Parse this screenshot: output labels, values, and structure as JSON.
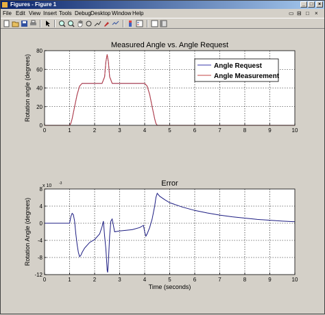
{
  "window": {
    "title": "Figures - Figure 1"
  },
  "window_controls": {
    "minimize": "_",
    "maximize": "□",
    "close": "×"
  },
  "menubar": {
    "items": [
      "File",
      "Edit",
      "View",
      "Insert",
      "Tools",
      "Debug",
      "Desktop",
      "Window",
      "Help"
    ]
  },
  "dock_controls": [
    "▭",
    "⊟",
    "□",
    "×"
  ],
  "toolbar": {
    "icons": [
      "new-file-icon",
      "open-file-icon",
      "save-icon",
      "print-icon",
      "edit-plot-arrow-icon",
      "zoom-in-icon",
      "zoom-out-icon",
      "pan-hand-icon",
      "rotate-3d-icon",
      "data-cursor-icon",
      "brush-icon",
      "link-plot-icon",
      "colorbar-icon",
      "legend-icon",
      "hide-plot-tools-icon",
      "show-plot-tools-icon"
    ]
  },
  "chart_data": [
    {
      "type": "line",
      "title": "Measured Angle vs. Angle Request",
      "xlabel": "",
      "ylabel": "Rotation angle (degrees)",
      "xlim": [
        0,
        10
      ],
      "ylim": [
        0,
        80
      ],
      "xticks": [
        "0",
        "1",
        "2",
        "3",
        "4",
        "5",
        "6",
        "7",
        "8",
        "9",
        "10"
      ],
      "yticks": [
        "0",
        "20",
        "40",
        "60",
        "80"
      ],
      "grid": true,
      "legend_placement": "top-right",
      "series": [
        {
          "name": "Angle Request",
          "color": "#3333aa",
          "x": [
            0,
            1.0,
            1.05,
            1.1,
            1.2,
            1.3,
            1.4,
            1.5,
            2.3,
            2.4,
            2.45,
            2.5,
            2.55,
            2.6,
            2.7,
            4.0,
            4.1,
            4.2,
            4.3,
            4.4,
            4.45,
            4.5,
            10
          ],
          "y": [
            0,
            0,
            2,
            7,
            20,
            33,
            42,
            45,
            45,
            52,
            68,
            76,
            68,
            52,
            45,
            45,
            42,
            33,
            20,
            7,
            2,
            0,
            0
          ]
        },
        {
          "name": "Angle Measurement",
          "color": "#c04040",
          "x": [
            0,
            1.0,
            1.05,
            1.1,
            1.2,
            1.3,
            1.4,
            1.5,
            2.3,
            2.4,
            2.45,
            2.5,
            2.55,
            2.6,
            2.7,
            4.0,
            4.1,
            4.2,
            4.3,
            4.4,
            4.45,
            4.5,
            10
          ],
          "y": [
            0,
            0,
            2,
            7,
            20,
            33,
            42,
            45,
            45,
            52,
            68,
            76,
            68,
            52,
            45,
            45,
            42,
            33,
            20,
            7,
            2,
            0,
            0
          ]
        }
      ]
    },
    {
      "type": "line",
      "title": "Error",
      "xlabel": "Time (seconds)",
      "ylabel": "Rotation Angle (degrees)",
      "multiplier": "x 10",
      "multiplier_exp": "-3",
      "xlim": [
        0,
        10
      ],
      "ylim": [
        -12,
        8
      ],
      "xticks": [
        "0",
        "1",
        "2",
        "3",
        "4",
        "5",
        "6",
        "7",
        "8",
        "9",
        "10"
      ],
      "yticks": [
        "8",
        "4",
        "0",
        "-4",
        "-8",
        "-12"
      ],
      "grid": true,
      "series": [
        {
          "name": "",
          "color": "#1a1a80",
          "x": [
            0,
            1.0,
            1.05,
            1.1,
            1.15,
            1.2,
            1.25,
            1.3,
            1.35,
            1.4,
            1.45,
            1.5,
            1.6,
            1.8,
            2.0,
            2.2,
            2.3,
            2.35,
            2.4,
            2.45,
            2.47,
            2.5,
            2.52,
            2.55,
            2.6,
            2.65,
            2.7,
            2.8,
            3.0,
            3.5,
            3.8,
            3.95,
            4.0,
            4.05,
            4.1,
            4.2,
            4.3,
            4.4,
            4.45,
            4.5,
            4.6,
            4.8,
            5.0,
            5.5,
            6,
            6.5,
            7,
            7.5,
            8,
            8.5,
            9,
            9.5,
            10
          ],
          "y": [
            0,
            0,
            1.5,
            2.3,
            2.0,
            0.5,
            -2.5,
            -5,
            -6.8,
            -7.8,
            -7.5,
            -6.8,
            -5.8,
            -4.5,
            -3.8,
            -2.5,
            -0.8,
            0.5,
            -3,
            -6,
            -8,
            -11,
            -11.5,
            -9,
            -3,
            0.5,
            1.0,
            -2.0,
            -1.8,
            -1.5,
            -1.0,
            -0.5,
            -2.0,
            -3.0,
            -2.5,
            -1.0,
            1.0,
            4.0,
            6.0,
            7.0,
            6.3,
            5.5,
            4.8,
            3.8,
            3.0,
            2.4,
            1.9,
            1.5,
            1.2,
            0.9,
            0.7,
            0.5,
            0.35
          ]
        }
      ]
    }
  ]
}
